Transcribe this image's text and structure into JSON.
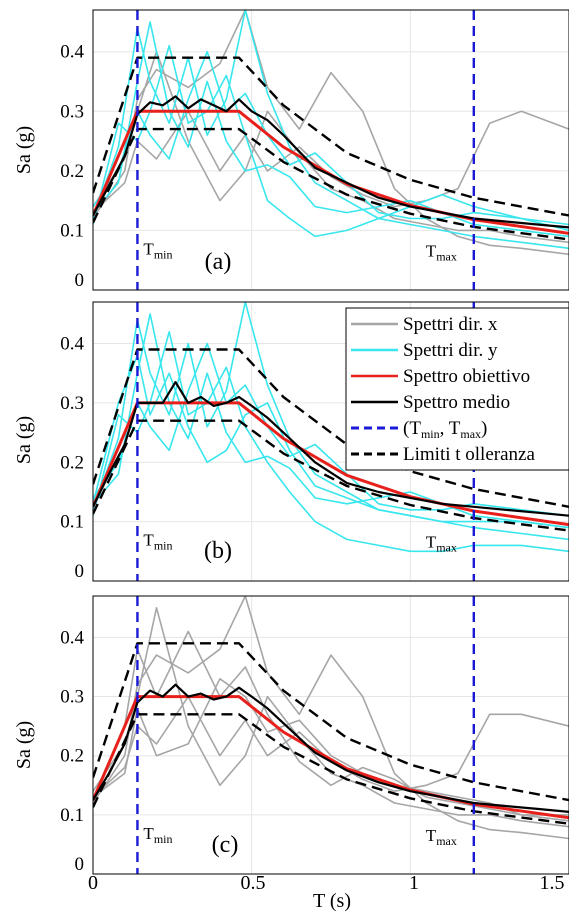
{
  "figure": {
    "xlabel": "T (s)",
    "x_ticks": [
      "0",
      "0.5",
      "1",
      "1.5"
    ],
    "ylabel": "Sa (g)",
    "y_ticks": [
      "0",
      "0.1",
      "0.2",
      "0.3",
      "0.4"
    ]
  },
  "legend": [
    {
      "label": "Spettri dir. x",
      "color": "#a6a6a6",
      "style": "solid"
    },
    {
      "label": "Spettri dir. y",
      "color": "#38e6ee",
      "style": "solid"
    },
    {
      "label": "Spettro obiettivo",
      "color": "#e8201c",
      "style": "solid"
    },
    {
      "label": "Spettro medio",
      "color": "#000000",
      "style": "solid"
    },
    {
      "label_main": "(T",
      "sub_min": "min",
      "sep": ", T",
      "sub_max": "max",
      "close": ")",
      "color": "#1a1ad6",
      "style": "dashed"
    },
    {
      "label": "Limiti t olleranza",
      "color": "#000000",
      "style": "dashed"
    }
  ],
  "markers": {
    "tmin_main": "T",
    "tmin_sub": "min",
    "tmax_main": "T",
    "tmax_sub": "max"
  },
  "colors": {
    "x_spectra": "#a6a6a6",
    "y_spectra": "#38e6ee",
    "target": "#e8201c",
    "mean": "#000000",
    "tolerance": "#000000",
    "period_range": "#1a1ad6",
    "grid": "#e6e6e6"
  },
  "chart_data": [
    {
      "type": "line",
      "panel_label": "(a)",
      "xlim": [
        0,
        1.5
      ],
      "ylim": [
        0,
        0.47
      ],
      "period_range": {
        "tmin": 0.14,
        "tmax": 1.2
      },
      "target": {
        "x": [
          0,
          0.14,
          0.46,
          0.6,
          0.8,
          1.0,
          1.2,
          1.5
        ],
        "y": [
          0.125,
          0.3,
          0.3,
          0.24,
          0.178,
          0.142,
          0.118,
          0.095
        ]
      },
      "upper": {
        "x": [
          0,
          0.14,
          0.46,
          0.6,
          0.8,
          1.0,
          1.2,
          1.5
        ],
        "y": [
          0.163,
          0.39,
          0.39,
          0.31,
          0.23,
          0.185,
          0.155,
          0.125
        ]
      },
      "lower": {
        "x": [
          0,
          0.14,
          0.46,
          0.6,
          0.8,
          1.0,
          1.2,
          1.5
        ],
        "y": [
          0.113,
          0.27,
          0.27,
          0.215,
          0.16,
          0.128,
          0.106,
          0.085
        ]
      },
      "mean": {
        "x": [
          0,
          0.05,
          0.1,
          0.14,
          0.18,
          0.22,
          0.26,
          0.3,
          0.34,
          0.38,
          0.42,
          0.46,
          0.5,
          0.55,
          0.6,
          0.7,
          0.8,
          0.9,
          1.0,
          1.1,
          1.2,
          1.3,
          1.4,
          1.5
        ],
        "y": [
          0.125,
          0.175,
          0.225,
          0.295,
          0.315,
          0.31,
          0.325,
          0.305,
          0.32,
          0.31,
          0.3,
          0.32,
          0.3,
          0.285,
          0.26,
          0.205,
          0.18,
          0.155,
          0.14,
          0.13,
          0.12,
          0.115,
          0.11,
          0.105
        ]
      },
      "x_spectra": [
        {
          "x": [
            0,
            0.1,
            0.14,
            0.2,
            0.3,
            0.4,
            0.48,
            0.55,
            0.65,
            0.75,
            0.85,
            0.95,
            1.05,
            1.15,
            1.25,
            1.35,
            1.5
          ],
          "y": [
            0.12,
            0.2,
            0.32,
            0.37,
            0.34,
            0.38,
            0.47,
            0.34,
            0.27,
            0.365,
            0.3,
            0.17,
            0.12,
            0.09,
            0.075,
            0.07,
            0.06
          ]
        },
        {
          "x": [
            0,
            0.1,
            0.14,
            0.2,
            0.3,
            0.4,
            0.48,
            0.55,
            0.65,
            0.75,
            0.85,
            0.95,
            1.05,
            1.15,
            1.25,
            1.35,
            1.5
          ],
          "y": [
            0.13,
            0.18,
            0.25,
            0.22,
            0.3,
            0.2,
            0.26,
            0.2,
            0.24,
            0.19,
            0.16,
            0.14,
            0.15,
            0.17,
            0.28,
            0.3,
            0.27
          ]
        },
        {
          "x": [
            0,
            0.1,
            0.14,
            0.2,
            0.3,
            0.4,
            0.48,
            0.55,
            0.65,
            0.75,
            0.85,
            0.95,
            1.05,
            1.15,
            1.25,
            1.35,
            1.5
          ],
          "y": [
            0.14,
            0.22,
            0.3,
            0.4,
            0.25,
            0.15,
            0.2,
            0.3,
            0.23,
            0.17,
            0.15,
            0.12,
            0.11,
            0.1,
            0.1,
            0.09,
            0.08
          ]
        }
      ],
      "y_spectra": [
        {
          "x": [
            0,
            0.08,
            0.14,
            0.18,
            0.24,
            0.3,
            0.36,
            0.42,
            0.48,
            0.55,
            0.62,
            0.7,
            0.8,
            0.9,
            1.0,
            1.1,
            1.2,
            1.35,
            1.5
          ],
          "y": [
            0.12,
            0.24,
            0.44,
            0.35,
            0.28,
            0.39,
            0.26,
            0.32,
            0.47,
            0.33,
            0.24,
            0.18,
            0.15,
            0.12,
            0.11,
            0.1,
            0.09,
            0.08,
            0.07
          ]
        },
        {
          "x": [
            0,
            0.08,
            0.14,
            0.18,
            0.24,
            0.3,
            0.36,
            0.42,
            0.48,
            0.55,
            0.62,
            0.7,
            0.8,
            0.9,
            1.0,
            1.1,
            1.2,
            1.35,
            1.5
          ],
          "y": [
            0.13,
            0.18,
            0.35,
            0.45,
            0.3,
            0.24,
            0.35,
            0.25,
            0.2,
            0.21,
            0.19,
            0.14,
            0.13,
            0.14,
            0.15,
            0.13,
            0.11,
            0.1,
            0.09
          ]
        },
        {
          "x": [
            0,
            0.08,
            0.14,
            0.18,
            0.24,
            0.3,
            0.36,
            0.42,
            0.48,
            0.55,
            0.62,
            0.7,
            0.8,
            0.9,
            1.0,
            1.1,
            1.2,
            1.35,
            1.5
          ],
          "y": [
            0.11,
            0.28,
            0.25,
            0.3,
            0.41,
            0.28,
            0.3,
            0.36,
            0.26,
            0.15,
            0.12,
            0.09,
            0.1,
            0.12,
            0.14,
            0.16,
            0.14,
            0.12,
            0.1
          ]
        },
        {
          "x": [
            0,
            0.08,
            0.14,
            0.18,
            0.24,
            0.3,
            0.36,
            0.42,
            0.48,
            0.55,
            0.62,
            0.7,
            0.8,
            0.9,
            1.0,
            1.1,
            1.2,
            1.35,
            1.5
          ],
          "y": [
            0.14,
            0.2,
            0.3,
            0.26,
            0.22,
            0.32,
            0.4,
            0.3,
            0.33,
            0.26,
            0.21,
            0.23,
            0.18,
            0.13,
            0.12,
            0.12,
            0.13,
            0.12,
            0.11
          ]
        }
      ]
    },
    {
      "type": "line",
      "panel_label": "(b)",
      "xlim": [
        0,
        1.5
      ],
      "ylim": [
        0,
        0.47
      ],
      "period_range": {
        "tmin": 0.14,
        "tmax": 1.2
      },
      "target": {
        "x": [
          0,
          0.14,
          0.46,
          0.6,
          0.8,
          1.0,
          1.2,
          1.5
        ],
        "y": [
          0.125,
          0.3,
          0.3,
          0.24,
          0.178,
          0.142,
          0.118,
          0.095
        ]
      },
      "upper": {
        "x": [
          0,
          0.14,
          0.46,
          0.6,
          0.8,
          1.0,
          1.2,
          1.5
        ],
        "y": [
          0.163,
          0.39,
          0.39,
          0.31,
          0.23,
          0.185,
          0.155,
          0.125
        ]
      },
      "lower": {
        "x": [
          0,
          0.14,
          0.46,
          0.6,
          0.8,
          1.0,
          1.2,
          1.5
        ],
        "y": [
          0.113,
          0.27,
          0.27,
          0.215,
          0.16,
          0.128,
          0.106,
          0.085
        ]
      },
      "mean": {
        "x": [
          0,
          0.05,
          0.1,
          0.14,
          0.18,
          0.22,
          0.26,
          0.3,
          0.34,
          0.38,
          0.42,
          0.46,
          0.5,
          0.55,
          0.6,
          0.7,
          0.8,
          0.9,
          1.0,
          1.1,
          1.2,
          1.3,
          1.4,
          1.5
        ],
        "y": [
          0.125,
          0.18,
          0.23,
          0.3,
          0.3,
          0.3,
          0.335,
          0.3,
          0.31,
          0.295,
          0.3,
          0.31,
          0.295,
          0.275,
          0.25,
          0.2,
          0.165,
          0.15,
          0.14,
          0.13,
          0.125,
          0.12,
          0.115,
          0.11
        ]
      },
      "x_spectra": [],
      "y_spectra": [
        {
          "x": [
            0,
            0.08,
            0.14,
            0.18,
            0.24,
            0.3,
            0.36,
            0.42,
            0.48,
            0.55,
            0.62,
            0.7,
            0.8,
            0.9,
            1.0,
            1.1,
            1.2,
            1.35,
            1.5
          ],
          "y": [
            0.12,
            0.24,
            0.44,
            0.35,
            0.28,
            0.4,
            0.26,
            0.32,
            0.47,
            0.33,
            0.24,
            0.18,
            0.15,
            0.12,
            0.11,
            0.1,
            0.09,
            0.08,
            0.07
          ]
        },
        {
          "x": [
            0,
            0.08,
            0.14,
            0.18,
            0.24,
            0.3,
            0.36,
            0.42,
            0.48,
            0.55,
            0.62,
            0.7,
            0.8,
            0.9,
            1.0,
            1.1,
            1.2,
            1.35,
            1.5
          ],
          "y": [
            0.13,
            0.18,
            0.35,
            0.45,
            0.3,
            0.24,
            0.35,
            0.25,
            0.2,
            0.21,
            0.19,
            0.14,
            0.13,
            0.14,
            0.15,
            0.13,
            0.11,
            0.1,
            0.09
          ]
        },
        {
          "x": [
            0,
            0.08,
            0.14,
            0.18,
            0.24,
            0.3,
            0.36,
            0.42,
            0.48,
            0.55,
            0.62,
            0.7,
            0.8,
            0.9,
            1.0,
            1.1,
            1.2,
            1.35,
            1.5
          ],
          "y": [
            0.11,
            0.28,
            0.25,
            0.3,
            0.42,
            0.28,
            0.3,
            0.36,
            0.26,
            0.2,
            0.15,
            0.1,
            0.07,
            0.06,
            0.05,
            0.05,
            0.06,
            0.06,
            0.05
          ]
        },
        {
          "x": [
            0,
            0.08,
            0.14,
            0.18,
            0.24,
            0.3,
            0.36,
            0.42,
            0.48,
            0.55,
            0.62,
            0.7,
            0.8,
            0.9,
            1.0,
            1.1,
            1.2,
            1.35,
            1.5
          ],
          "y": [
            0.14,
            0.2,
            0.3,
            0.26,
            0.22,
            0.32,
            0.4,
            0.3,
            0.33,
            0.26,
            0.21,
            0.23,
            0.18,
            0.13,
            0.12,
            0.12,
            0.13,
            0.12,
            0.11
          ]
        },
        {
          "x": [
            0,
            0.08,
            0.14,
            0.18,
            0.24,
            0.3,
            0.36,
            0.42,
            0.48,
            0.55,
            0.62,
            0.7,
            0.8,
            0.9,
            1.0,
            1.1,
            1.2,
            1.35,
            1.5
          ],
          "y": [
            0.13,
            0.3,
            0.38,
            0.28,
            0.35,
            0.26,
            0.2,
            0.22,
            0.28,
            0.3,
            0.22,
            0.16,
            0.14,
            0.12,
            0.11,
            0.1,
            0.1,
            0.1,
            0.09
          ]
        }
      ]
    },
    {
      "type": "line",
      "panel_label": "(c)",
      "xlim": [
        0,
        1.5
      ],
      "ylim": [
        0,
        0.47
      ],
      "period_range": {
        "tmin": 0.14,
        "tmax": 1.2
      },
      "target": {
        "x": [
          0,
          0.14,
          0.46,
          0.6,
          0.8,
          1.0,
          1.2,
          1.5
        ],
        "y": [
          0.125,
          0.3,
          0.3,
          0.24,
          0.178,
          0.142,
          0.118,
          0.095
        ]
      },
      "upper": {
        "x": [
          0,
          0.14,
          0.46,
          0.6,
          0.8,
          1.0,
          1.2,
          1.5
        ],
        "y": [
          0.163,
          0.39,
          0.39,
          0.31,
          0.23,
          0.185,
          0.155,
          0.125
        ]
      },
      "lower": {
        "x": [
          0,
          0.14,
          0.46,
          0.6,
          0.8,
          1.0,
          1.2,
          1.5
        ],
        "y": [
          0.113,
          0.27,
          0.27,
          0.215,
          0.16,
          0.128,
          0.106,
          0.085
        ]
      },
      "mean": {
        "x": [
          0,
          0.05,
          0.1,
          0.14,
          0.18,
          0.22,
          0.26,
          0.3,
          0.34,
          0.38,
          0.42,
          0.46,
          0.5,
          0.55,
          0.6,
          0.7,
          0.8,
          0.9,
          1.0,
          1.1,
          1.2,
          1.3,
          1.4,
          1.5
        ],
        "y": [
          0.125,
          0.17,
          0.22,
          0.29,
          0.31,
          0.3,
          0.32,
          0.3,
          0.305,
          0.295,
          0.3,
          0.315,
          0.3,
          0.28,
          0.255,
          0.205,
          0.175,
          0.155,
          0.14,
          0.13,
          0.12,
          0.115,
          0.11,
          0.105
        ]
      },
      "x_spectra": [
        {
          "x": [
            0,
            0.1,
            0.14,
            0.2,
            0.3,
            0.4,
            0.48,
            0.55,
            0.65,
            0.75,
            0.85,
            0.95,
            1.05,
            1.15,
            1.25,
            1.35,
            1.5
          ],
          "y": [
            0.12,
            0.2,
            0.32,
            0.37,
            0.34,
            0.38,
            0.47,
            0.34,
            0.27,
            0.37,
            0.3,
            0.17,
            0.12,
            0.09,
            0.075,
            0.07,
            0.06
          ]
        },
        {
          "x": [
            0,
            0.1,
            0.14,
            0.2,
            0.3,
            0.4,
            0.48,
            0.55,
            0.65,
            0.75,
            0.85,
            0.95,
            1.05,
            1.15,
            1.25,
            1.35,
            1.5
          ],
          "y": [
            0.13,
            0.18,
            0.25,
            0.22,
            0.3,
            0.2,
            0.26,
            0.2,
            0.24,
            0.19,
            0.16,
            0.14,
            0.15,
            0.17,
            0.27,
            0.27,
            0.25
          ]
        },
        {
          "x": [
            0,
            0.1,
            0.14,
            0.2,
            0.3,
            0.4,
            0.48,
            0.55,
            0.65,
            0.75,
            0.85,
            0.95,
            1.05,
            1.15,
            1.25,
            1.35,
            1.5
          ],
          "y": [
            0.14,
            0.22,
            0.3,
            0.45,
            0.25,
            0.15,
            0.2,
            0.3,
            0.23,
            0.17,
            0.15,
            0.12,
            0.11,
            0.1,
            0.1,
            0.09,
            0.08
          ]
        },
        {
          "x": [
            0,
            0.1,
            0.14,
            0.2,
            0.3,
            0.4,
            0.48,
            0.55,
            0.65,
            0.75,
            0.85,
            0.95,
            1.05,
            1.15,
            1.25,
            1.35,
            1.5
          ],
          "y": [
            0.12,
            0.25,
            0.38,
            0.3,
            0.41,
            0.3,
            0.35,
            0.27,
            0.19,
            0.15,
            0.18,
            0.16,
            0.13,
            0.12,
            0.11,
            0.1,
            0.09
          ]
        },
        {
          "x": [
            0,
            0.1,
            0.14,
            0.2,
            0.3,
            0.4,
            0.48,
            0.55,
            0.65,
            0.75,
            0.85,
            0.95,
            1.05,
            1.15,
            1.25,
            1.35,
            1.5
          ],
          "y": [
            0.13,
            0.17,
            0.28,
            0.2,
            0.22,
            0.33,
            0.3,
            0.24,
            0.26,
            0.2,
            0.17,
            0.15,
            0.14,
            0.13,
            0.12,
            0.1,
            0.1
          ]
        }
      ],
      "y_spectra": []
    }
  ]
}
